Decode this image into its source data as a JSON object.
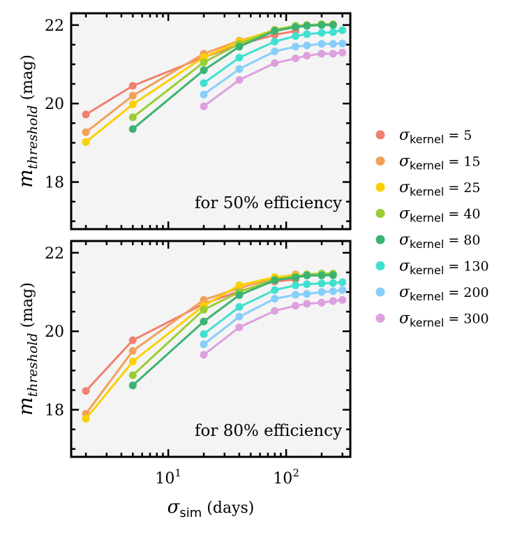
{
  "chart_data": [
    {
      "type": "line",
      "annotation": "for 50% efficiency",
      "xscale": "log",
      "xlim": [
        1.5,
        350
      ],
      "ylim": [
        16.8,
        22.3
      ],
      "yticks": [
        18,
        20,
        22
      ],
      "ylabel_symbol": "m",
      "ylabel_sub": "threshold",
      "ylabel_unit": "(mag)",
      "series": [
        {
          "name": "5",
          "color": "#f08070",
          "x": [
            2,
            5,
            20,
            40,
            80,
            120
          ],
          "y": [
            19.72,
            20.45,
            21.18,
            21.5,
            21.75,
            21.85
          ]
        },
        {
          "name": "15",
          "color": "#f2a05a",
          "x": [
            2,
            5,
            20,
            40,
            80,
            120
          ],
          "y": [
            19.27,
            20.2,
            21.27,
            21.6,
            21.85,
            21.95
          ]
        },
        {
          "name": "25",
          "color": "#fcd000",
          "x": [
            2,
            5,
            20,
            40,
            80,
            120
          ],
          "y": [
            19.02,
            19.98,
            21.18,
            21.58,
            21.88,
            21.95
          ]
        },
        {
          "name": "40",
          "color": "#9acd32",
          "x": [
            5,
            20,
            40,
            80,
            120,
            150,
            200,
            250
          ],
          "y": [
            19.65,
            21.05,
            21.52,
            21.88,
            21.98,
            22.0,
            22.02,
            22.02
          ]
        },
        {
          "name": "80",
          "color": "#3cb371",
          "x": [
            5,
            20,
            40,
            80,
            120,
            150,
            200,
            250
          ],
          "y": [
            19.35,
            20.85,
            21.45,
            21.85,
            21.95,
            21.98,
            22.0,
            22.0
          ]
        },
        {
          "name": "130",
          "color": "#40e0d0",
          "x": [
            20,
            40,
            80,
            120,
            150,
            200,
            250,
            300
          ],
          "y": [
            20.52,
            21.17,
            21.58,
            21.72,
            21.77,
            21.8,
            21.82,
            21.87
          ]
        },
        {
          "name": "200",
          "color": "#87cefa",
          "x": [
            20,
            40,
            80,
            120,
            150,
            200,
            250,
            300
          ],
          "y": [
            20.23,
            20.88,
            21.33,
            21.45,
            21.48,
            21.52,
            21.52,
            21.53
          ]
        },
        {
          "name": "300",
          "color": "#dda0dd",
          "x": [
            20,
            40,
            80,
            120,
            150,
            200,
            250,
            300
          ],
          "y": [
            19.93,
            20.6,
            21.03,
            21.15,
            21.22,
            21.27,
            21.27,
            21.3
          ]
        }
      ]
    },
    {
      "type": "line",
      "annotation": "for 80% efficiency",
      "xscale": "log",
      "xlim": [
        1.5,
        350
      ],
      "ylim": [
        16.8,
        22.3
      ],
      "yticks": [
        18,
        20,
        22
      ],
      "xticks_base": "10",
      "xticks_exp": [
        "1",
        "2"
      ],
      "ylabel_symbol": "m",
      "ylabel_sub": "threshold",
      "ylabel_unit": "(mag)",
      "xlabel_symbol": "σ",
      "xlabel_sub": "sim",
      "xlabel_unit": "(days)",
      "series": [
        {
          "name": "5",
          "color": "#f08070",
          "x": [
            2,
            5,
            20,
            40,
            80,
            120
          ],
          "y": [
            18.48,
            19.77,
            20.7,
            21.02,
            21.27,
            21.32
          ]
        },
        {
          "name": "15",
          "color": "#f2a05a",
          "x": [
            2,
            5,
            20,
            40,
            80,
            120
          ],
          "y": [
            17.9,
            19.5,
            20.8,
            21.1,
            21.35,
            21.45
          ]
        },
        {
          "name": "25",
          "color": "#fcd000",
          "x": [
            2,
            5,
            20,
            40,
            80,
            120
          ],
          "y": [
            17.77,
            19.23,
            20.65,
            21.17,
            21.38,
            21.42
          ]
        },
        {
          "name": "40",
          "color": "#9acd32",
          "x": [
            5,
            20,
            40,
            80,
            120,
            150,
            200,
            250
          ],
          "y": [
            18.88,
            20.55,
            21.0,
            21.32,
            21.4,
            21.45,
            21.47,
            21.47
          ]
        },
        {
          "name": "80",
          "color": "#3cb371",
          "x": [
            5,
            20,
            40,
            80,
            120,
            150,
            200,
            250
          ],
          "y": [
            18.62,
            20.25,
            20.92,
            21.3,
            21.37,
            21.42,
            21.42,
            21.43
          ]
        },
        {
          "name": "130",
          "color": "#40e0d0",
          "x": [
            20,
            40,
            80,
            120,
            150,
            200,
            250,
            300
          ],
          "y": [
            19.93,
            20.62,
            21.05,
            21.17,
            21.2,
            21.22,
            21.23,
            21.25
          ]
        },
        {
          "name": "200",
          "color": "#87cefa",
          "x": [
            20,
            40,
            80,
            120,
            150,
            200,
            250,
            300
          ],
          "y": [
            19.67,
            20.37,
            20.83,
            20.93,
            20.95,
            21.0,
            21.02,
            21.05
          ]
        },
        {
          "name": "300",
          "color": "#dda0dd",
          "x": [
            20,
            40,
            80,
            120,
            150,
            200,
            250,
            300
          ],
          "y": [
            19.4,
            20.1,
            20.52,
            20.65,
            20.7,
            20.73,
            20.77,
            20.8
          ]
        }
      ]
    }
  ],
  "legend": {
    "position": "right",
    "symbol": "σ",
    "sub": "kernel",
    "entries": [
      {
        "value": "= 5",
        "color": "#f08070"
      },
      {
        "value": "= 15",
        "color": "#f2a05a"
      },
      {
        "value": "= 25",
        "color": "#fcd000"
      },
      {
        "value": "= 40",
        "color": "#9acd32"
      },
      {
        "value": "= 80",
        "color": "#3cb371"
      },
      {
        "value": "= 130",
        "color": "#40e0d0"
      },
      {
        "value": "= 200",
        "color": "#87cefa"
      },
      {
        "value": "= 300",
        "color": "#dda0dd"
      }
    ]
  }
}
